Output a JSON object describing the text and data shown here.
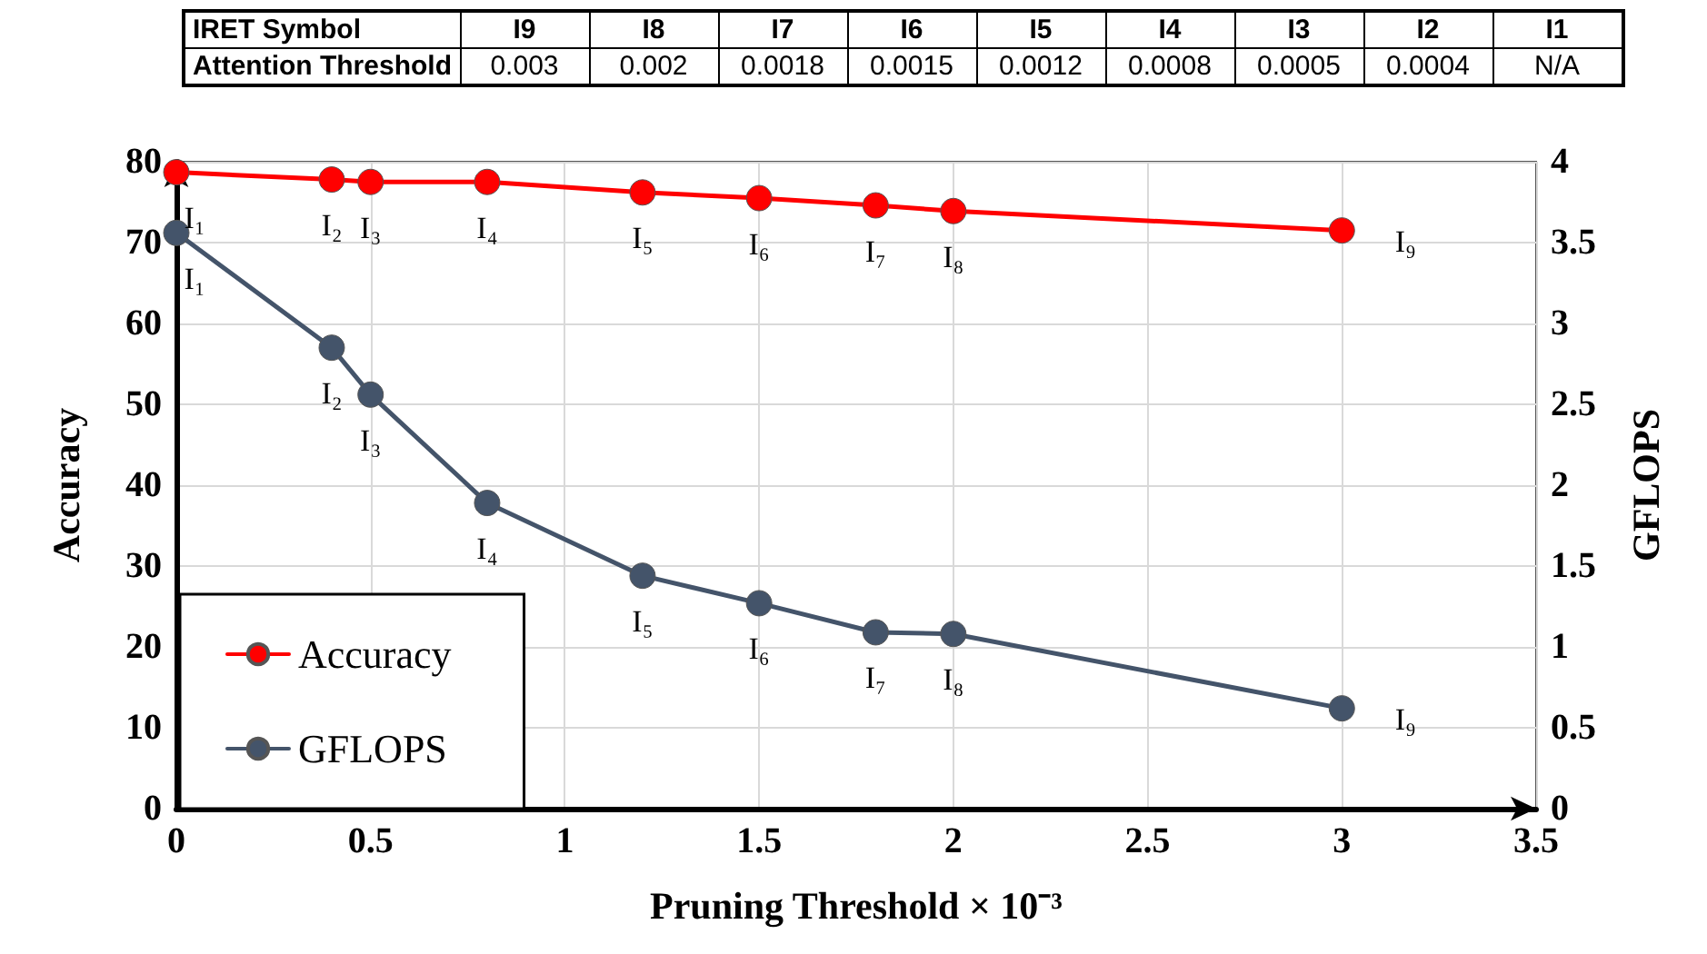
{
  "chart_data": {
    "type": "line",
    "x": [
      0,
      0.4,
      0.5,
      0.8,
      1.2,
      1.5,
      1.8,
      2.0,
      3.0
    ],
    "series": [
      {
        "name": "Accuracy",
        "color": "#ff0000",
        "values": [
          78.7,
          77.8,
          77.5,
          77.5,
          76.2,
          75.5,
          74.6,
          73.9,
          71.5
        ],
        "value_labels": [
          "I₁",
          "I₂",
          "I₃",
          "I₄",
          "I₅",
          "I₆",
          "I₇",
          "I₈",
          "I₉"
        ]
      },
      {
        "name": "GFLOPS",
        "color": "#44546a",
        "axis": "y2",
        "values": [
          3.56,
          2.85,
          2.56,
          1.89,
          1.44,
          1.27,
          1.09,
          1.08,
          0.62
        ],
        "value_labels": [
          "I₁",
          "I₂",
          "I₃",
          "I₄",
          "I₅",
          "I₆",
          "I₇",
          "I₈",
          "I₉"
        ]
      }
    ],
    "xlabel": "Pruning Threshold × 10⁻³",
    "ylabel": "Accuracy",
    "y2label": "GFLOPS",
    "xlim": [
      0,
      3.5
    ],
    "xticks": [
      0,
      0.5,
      1,
      1.5,
      2,
      2.5,
      3,
      3.5
    ],
    "ylim": [
      0,
      80
    ],
    "yticks": [
      0,
      10,
      20,
      30,
      40,
      50,
      60,
      70,
      80
    ],
    "y2lim": [
      0,
      4
    ],
    "y2ticks": [
      0,
      0.5,
      1,
      1.5,
      2,
      2.5,
      3,
      3.5,
      4
    ],
    "grid": true,
    "legend": "bottom left",
    "marker": "circle",
    "line_style": "solid",
    "annotations": [
      "IRET Symbol",
      "I9",
      "I8",
      "I7",
      "I6",
      "I5",
      "I4",
      "I3",
      "I2",
      "I1",
      "Attention Threshold",
      "0.003",
      "0.002",
      "0.0018",
      "0.0015",
      "0.0012",
      "0.0008",
      "0.0005",
      "0.0004",
      "N/A"
    ]
  }
}
